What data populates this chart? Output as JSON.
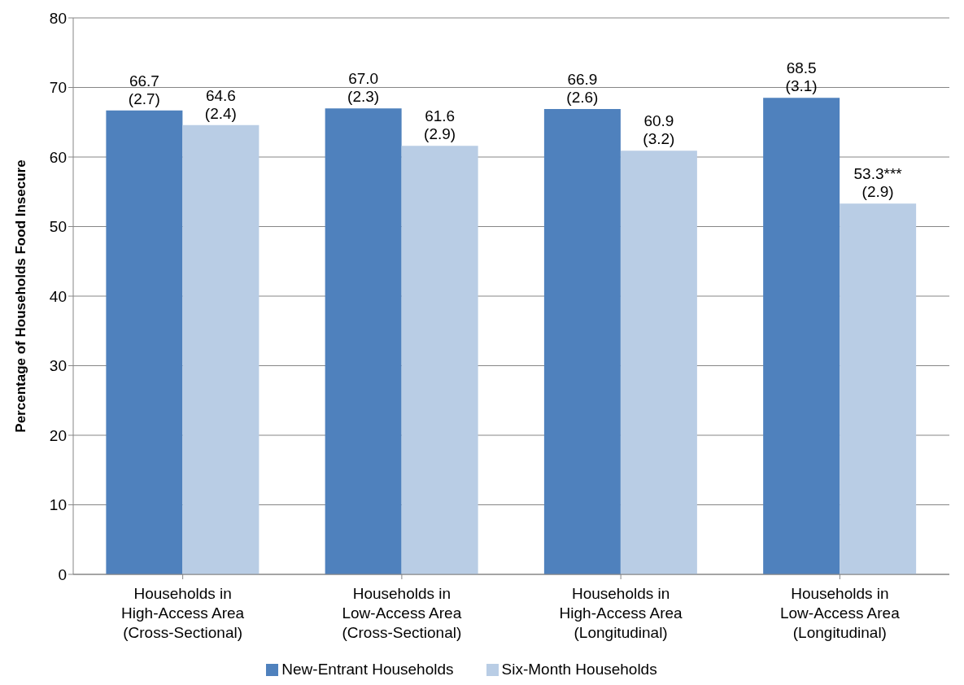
{
  "chart_data": {
    "type": "bar",
    "ylabel": "Percentage of Households Food Insecure",
    "categories": [
      "Households in\nHigh-Access Area\n(Cross-Sectional)",
      "Households in\nLow-Access Area\n(Cross-Sectional)",
      "Households in\nHigh-Access Area\n(Longitudinal)",
      "Households in\nLow-Access Area\n(Longitudinal)"
    ],
    "series": [
      {
        "name": "New-Entrant Households",
        "color": "#4f81bd",
        "values": [
          66.7,
          67.0,
          66.9,
          68.5
        ],
        "value_labels": [
          "66.7\n(2.7)",
          "67.0\n(2.3)",
          "66.9\n(2.6)",
          "68.5\n(3.1)"
        ]
      },
      {
        "name": "Six-Month Households",
        "color": "#b9cde5",
        "values": [
          64.6,
          61.6,
          60.9,
          53.3
        ],
        "value_labels": [
          "64.6\n(2.4)",
          "61.6\n(2.9)",
          "60.9\n(3.2)",
          "53.3***\n(2.9)"
        ]
      }
    ],
    "ylim": [
      0,
      80
    ],
    "yticks": [
      0,
      10,
      20,
      30,
      40,
      50,
      60,
      70,
      80
    ],
    "grid": "y",
    "legend": "bottom"
  }
}
